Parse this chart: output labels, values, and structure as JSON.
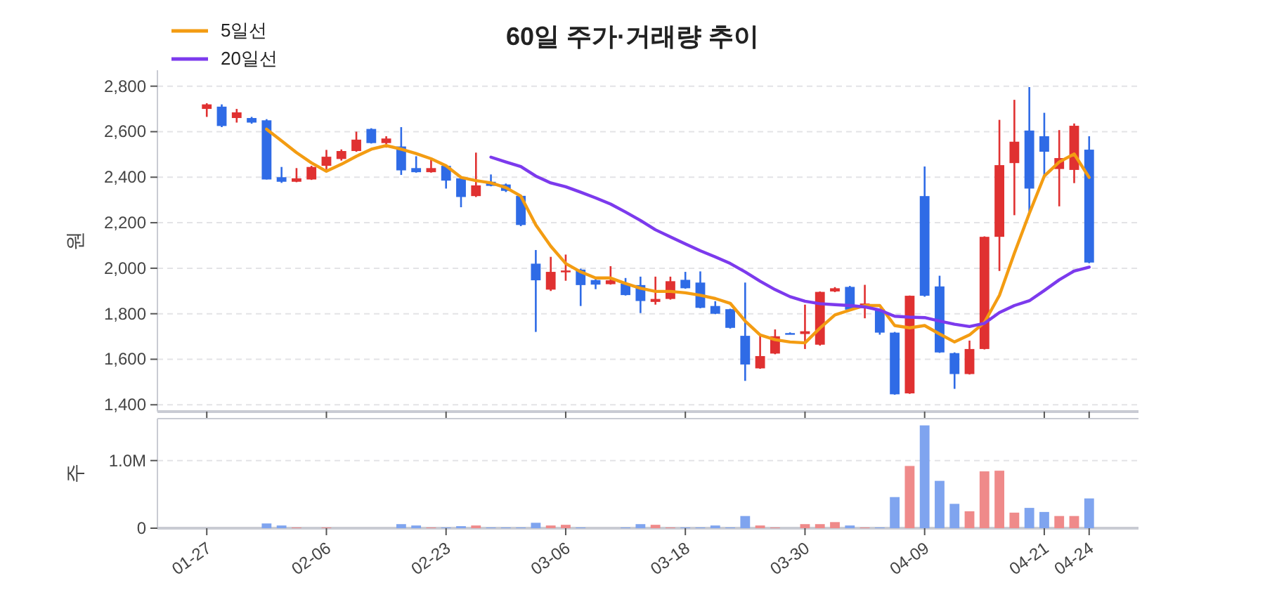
{
  "chart_data": [
    {
      "type": "candlestick",
      "title": "60일 주가·거래량 추이",
      "ylabel": "원",
      "categories": [
        null,
        null,
        null,
        null,
        null,
        null,
        null,
        null,
        null,
        null,
        null,
        null,
        null,
        null,
        null,
        null,
        null,
        null,
        null,
        null,
        null,
        null,
        null,
        null,
        null,
        null,
        null,
        null,
        null,
        null,
        null,
        null,
        null,
        null,
        null,
        null,
        null,
        null,
        null,
        null,
        null,
        null,
        null,
        null,
        null,
        null,
        null,
        null,
        null,
        null,
        null,
        null,
        null,
        null,
        null,
        null,
        null,
        null,
        null,
        null
      ],
      "ohlc": [
        [
          2700,
          2725,
          2665,
          2720
        ],
        [
          2710,
          2720,
          2620,
          2625
        ],
        [
          2660,
          2700,
          2640,
          2685
        ],
        [
          2660,
          2665,
          2635,
          2640
        ],
        [
          2650,
          2655,
          2390,
          2390
        ],
        [
          2400,
          2445,
          2375,
          2380
        ],
        [
          2380,
          2440,
          2378,
          2395
        ],
        [
          2390,
          2450,
          2388,
          2445
        ],
        [
          2450,
          2520,
          2435,
          2490
        ],
        [
          2480,
          2522,
          2473,
          2515
        ],
        [
          2515,
          2600,
          2512,
          2565
        ],
        [
          2612,
          2615,
          2548,
          2550
        ],
        [
          2550,
          2580,
          2530,
          2570
        ],
        [
          2535,
          2620,
          2410,
          2430
        ],
        [
          2440,
          2492,
          2420,
          2422
        ],
        [
          2422,
          2478,
          2420,
          2440
        ],
        [
          2450,
          2455,
          2350,
          2385
        ],
        [
          2395,
          2400,
          2268,
          2313
        ],
        [
          2317,
          2508,
          2313,
          2364
        ],
        [
          2380,
          2412,
          2360,
          2362
        ],
        [
          2368,
          2372,
          2335,
          2340
        ],
        [
          2318,
          2320,
          2185,
          2190
        ],
        [
          2020,
          2080,
          1720,
          1947
        ],
        [
          1906,
          2050,
          1900,
          1984
        ],
        [
          1982,
          2060,
          1945,
          1990
        ],
        [
          1994,
          1998,
          1834,
          1926
        ],
        [
          1948,
          1952,
          1908,
          1928
        ],
        [
          1930,
          2009,
          1928,
          1947
        ],
        [
          1932,
          1957,
          1880,
          1882
        ],
        [
          1926,
          1963,
          1803,
          1856
        ],
        [
          1852,
          1963,
          1840,
          1865
        ],
        [
          1865,
          1963,
          1862,
          1943
        ],
        [
          1949,
          1984,
          1910,
          1912
        ],
        [
          1937,
          1986,
          1824,
          1826
        ],
        [
          1834,
          1855,
          1798,
          1800
        ],
        [
          1820,
          1822,
          1735,
          1738
        ],
        [
          1703,
          1937,
          1505,
          1577
        ],
        [
          1560,
          1703,
          1558,
          1614
        ],
        [
          1625,
          1731,
          1622,
          1701
        ],
        [
          1715,
          1718,
          1710,
          1711
        ],
        [
          1711,
          1840,
          1645,
          1723
        ],
        [
          1664,
          1898,
          1660,
          1896
        ],
        [
          1898,
          1917,
          1895,
          1912
        ],
        [
          1918,
          1922,
          1815,
          1818
        ],
        [
          1830,
          1927,
          1780,
          1845
        ],
        [
          1820,
          1822,
          1708,
          1717
        ],
        [
          1717,
          1720,
          1444,
          1446
        ],
        [
          1450,
          1880,
          1448,
          1879
        ],
        [
          2317,
          2447,
          1875,
          1879
        ],
        [
          1920,
          1967,
          1628,
          1630
        ],
        [
          1627,
          1630,
          1470,
          1535
        ],
        [
          1535,
          1682,
          1533,
          1645
        ],
        [
          1645,
          2140,
          1643,
          2138
        ],
        [
          2138,
          2652,
          1988,
          2453
        ],
        [
          2462,
          2740,
          2233,
          2556
        ],
        [
          2605,
          2796,
          2249,
          2350
        ],
        [
          2580,
          2683,
          2405,
          2512
        ],
        [
          2436,
          2607,
          2272,
          2484
        ],
        [
          2432,
          2636,
          2374,
          2626
        ],
        [
          2521,
          2580,
          2022,
          2025
        ]
      ],
      "series": [
        {
          "name": "5일선",
          "type": "line",
          "color": "#f39c12",
          "values": [
            null,
            null,
            null,
            null,
            2611,
            2560,
            2508,
            2463,
            2426,
            2457,
            2492,
            2523,
            2539,
            2523,
            2504,
            2481,
            2450,
            2399,
            2385,
            2375,
            2354,
            2317,
            2190,
            2097,
            2021,
            1984,
            1957,
            1957,
            1933,
            1912,
            1898,
            1898,
            1892,
            1881,
            1867,
            1846,
            1768,
            1707,
            1686,
            1676,
            1672,
            1737,
            1795,
            1816,
            1836,
            1836,
            1748,
            1738,
            1748,
            1711,
            1676,
            1707,
            1762,
            1881,
            2066,
            2241,
            2405,
            2467,
            2502,
            2399
          ]
        },
        {
          "name": "20일선",
          "type": "line",
          "color": "#7c3aed",
          "values": [
            null,
            null,
            null,
            null,
            null,
            null,
            null,
            null,
            null,
            null,
            null,
            null,
            null,
            null,
            null,
            null,
            null,
            null,
            null,
            2488,
            2467,
            2447,
            2405,
            2375,
            2358,
            2334,
            2309,
            2282,
            2247,
            2210,
            2169,
            2138,
            2107,
            2077,
            2050,
            2021,
            1984,
            1943,
            1906,
            1875,
            1855,
            1844,
            1840,
            1836,
            1830,
            1816,
            1789,
            1785,
            1783,
            1768,
            1754,
            1744,
            1758,
            1805,
            1836,
            1857,
            1902,
            1949,
            1988,
            2005
          ]
        }
      ],
      "ylim": [
        1370,
        2870
      ],
      "yticks": [
        {
          "value": 1400,
          "label": "1,400"
        },
        {
          "value": 1600,
          "label": "1,600"
        },
        {
          "value": 1800,
          "label": "1,800"
        },
        {
          "value": 2000,
          "label": "2,000"
        },
        {
          "value": 2200,
          "label": "2,200"
        },
        {
          "value": 2400,
          "label": "2,400"
        },
        {
          "value": 2600,
          "label": "2,600"
        },
        {
          "value": 2800,
          "label": "2,800"
        }
      ],
      "grid": "y",
      "legend": "top left"
    },
    {
      "type": "bar",
      "ylabel": "주",
      "categories": [
        "01-27",
        null,
        null,
        null,
        null,
        null,
        null,
        null,
        "02-06",
        null,
        null,
        null,
        null,
        null,
        null,
        null,
        "02-23",
        null,
        null,
        null,
        null,
        null,
        null,
        null,
        "03-06",
        null,
        null,
        null,
        null,
        null,
        null,
        null,
        "03-18",
        null,
        null,
        null,
        null,
        null,
        null,
        null,
        "03-30",
        null,
        null,
        null,
        null,
        null,
        null,
        null,
        "04-09",
        null,
        null,
        null,
        null,
        null,
        null,
        null,
        "04-21",
        null,
        null,
        "04-24"
      ],
      "values": [
        0,
        0,
        0,
        0,
        70000,
        40000,
        10000,
        0,
        10000,
        0,
        0,
        0,
        0,
        60000,
        40000,
        10000,
        10000,
        30000,
        40000,
        10000,
        10000,
        10000,
        80000,
        40000,
        50000,
        10000,
        0,
        0,
        10000,
        60000,
        50000,
        10000,
        10000,
        10000,
        40000,
        10000,
        180000,
        40000,
        10000,
        0,
        60000,
        60000,
        90000,
        40000,
        10000,
        10000,
        460000,
        920000,
        1520000,
        700000,
        360000,
        250000,
        840000,
        850000,
        230000,
        300000,
        240000,
        180000,
        180000,
        440000
      ],
      "colors": [
        "#ef8a8a",
        "#7fa4ef",
        "#ef8a8a",
        "#7fa4ef",
        "#7fa4ef",
        "#7fa4ef",
        "#ef8a8a",
        "#ef8a8a",
        "#ef8a8a",
        "#ef8a8a",
        "#ef8a8a",
        "#7fa4ef",
        "#ef8a8a",
        "#7fa4ef",
        "#7fa4ef",
        "#ef8a8a",
        "#7fa4ef",
        "#7fa4ef",
        "#ef8a8a",
        "#7fa4ef",
        "#7fa4ef",
        "#7fa4ef",
        "#7fa4ef",
        "#ef8a8a",
        "#ef8a8a",
        "#7fa4ef",
        "#7fa4ef",
        "#ef8a8a",
        "#7fa4ef",
        "#7fa4ef",
        "#ef8a8a",
        "#ef8a8a",
        "#7fa4ef",
        "#7fa4ef",
        "#7fa4ef",
        "#7fa4ef",
        "#7fa4ef",
        "#ef8a8a",
        "#ef8a8a",
        "#7fa4ef",
        "#ef8a8a",
        "#ef8a8a",
        "#ef8a8a",
        "#7fa4ef",
        "#ef8a8a",
        "#7fa4ef",
        "#7fa4ef",
        "#ef8a8a",
        "#7fa4ef",
        "#7fa4ef",
        "#7fa4ef",
        "#ef8a8a",
        "#ef8a8a",
        "#ef8a8a",
        "#ef8a8a",
        "#7fa4ef",
        "#7fa4ef",
        "#ef8a8a",
        "#ef8a8a",
        "#7fa4ef"
      ],
      "ylim": [
        0,
        1620000
      ],
      "yticks": [
        0,
        {
          "value": 1000000,
          "label": "1.0M"
        }
      ],
      "grid": "y"
    }
  ]
}
